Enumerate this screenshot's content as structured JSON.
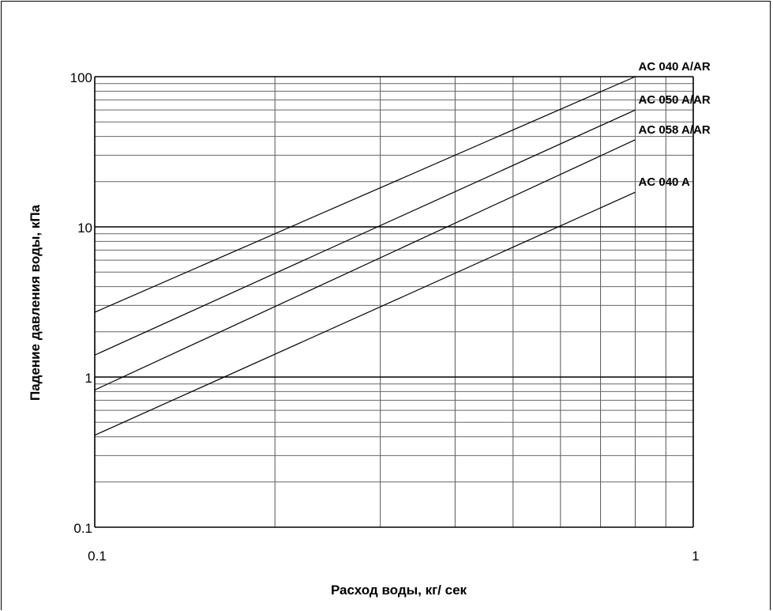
{
  "chart_data": {
    "type": "line",
    "title": "",
    "xlabel": "Расход воды, кг/ сек",
    "ylabel": "Падение давления воды, кПа",
    "x_scale": "log",
    "y_scale": "log",
    "xlim": [
      0.1,
      1
    ],
    "ylim": [
      0.1,
      100
    ],
    "grid": true,
    "x_ticks": [
      "0.1",
      "1"
    ],
    "y_ticks": [
      "0.1",
      "1",
      "10",
      "100"
    ],
    "series": [
      {
        "name": "AC 040 A/AR",
        "x": [
          0.1,
          0.8
        ],
        "y": [
          2.7,
          100
        ]
      },
      {
        "name": "AC 050 A/AR",
        "x": [
          0.1,
          0.8
        ],
        "y": [
          1.4,
          60
        ]
      },
      {
        "name": "AC 058 A/AR",
        "x": [
          0.1,
          0.8
        ],
        "y": [
          0.82,
          38
        ]
      },
      {
        "name": "AC 040 A",
        "x": [
          0.1,
          0.8
        ],
        "y": [
          0.41,
          17
        ]
      }
    ]
  }
}
